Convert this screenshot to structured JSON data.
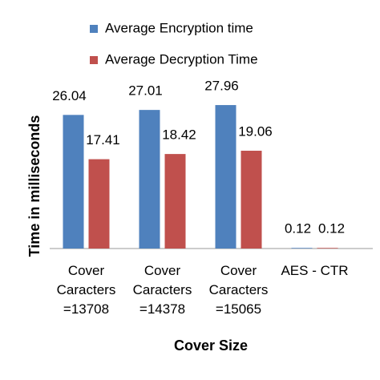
{
  "chart_data": {
    "type": "bar",
    "categories": [
      "Cover\nCaracters\n=13708",
      "Cover\nCaracters\n=14378",
      "Cover\nCaracters\n=15065",
      "AES - CTR"
    ],
    "series": [
      {
        "name": "Average Encryption time",
        "color": "#4f81bd",
        "values": [
          26.04,
          27.01,
          27.96,
          0.12
        ]
      },
      {
        "name": "Average Decryption Time",
        "color": "#c0504d",
        "values": [
          17.41,
          18.42,
          19.06,
          0.12
        ]
      }
    ],
    "x_label": "Cover Size",
    "y_label": "Time in milliseconds",
    "ylim": [
      0,
      30
    ]
  }
}
